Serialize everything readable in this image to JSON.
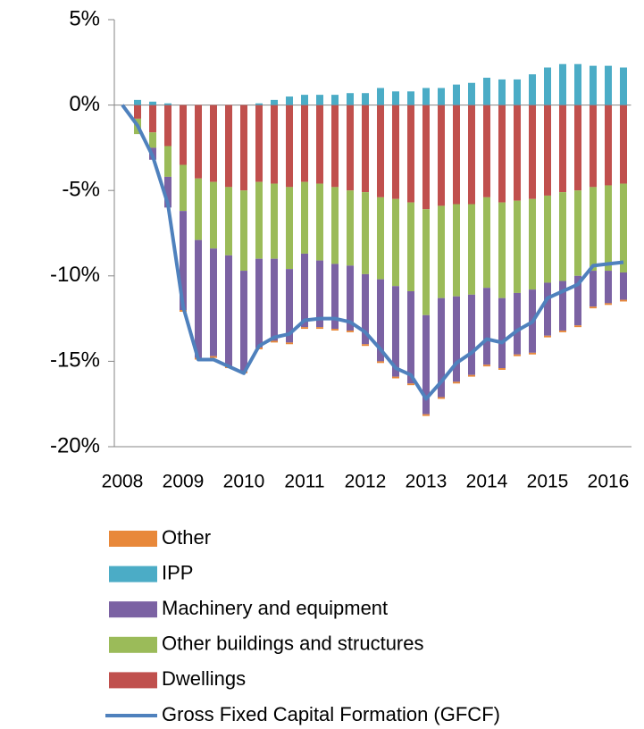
{
  "chart_data": {
    "type": "bar",
    "stacked": true,
    "categories": [
      "2008",
      null,
      null,
      null,
      "2009",
      null,
      null,
      null,
      "2010",
      null,
      null,
      null,
      "2011",
      null,
      null,
      null,
      "2012",
      null,
      null,
      null,
      "2013",
      null,
      null,
      null,
      "2014",
      null,
      null,
      null,
      "2015",
      null,
      null,
      null,
      "2016",
      null
    ],
    "ylim": [
      -20,
      5
    ],
    "yticks": [
      {
        "value": 5,
        "label": "5%"
      },
      {
        "value": 0,
        "label": "0%"
      },
      {
        "value": -5,
        "label": "-5%"
      },
      {
        "value": -10,
        "label": "-10%"
      },
      {
        "value": -15,
        "label": "-15%"
      },
      {
        "value": -20,
        "label": "-20%"
      }
    ],
    "series": [
      {
        "name": "Other",
        "type": "bar",
        "color": "#e8883a",
        "values": [
          0,
          0,
          0,
          0,
          -0.1,
          -0.1,
          -0.1,
          -0.1,
          -0.1,
          -0.1,
          -0.1,
          -0.1,
          -0.1,
          -0.1,
          -0.1,
          -0.1,
          -0.1,
          -0.1,
          -0.1,
          -0.1,
          -0.1,
          -0.1,
          -0.1,
          -0.1,
          -0.1,
          -0.1,
          -0.1,
          -0.1,
          -0.1,
          -0.1,
          -0.1,
          -0.1,
          -0.1,
          -0.1
        ]
      },
      {
        "name": "IPP",
        "type": "bar",
        "color": "#4bacc6",
        "values": [
          0,
          0.3,
          0.2,
          0.1,
          0,
          0,
          0,
          0,
          0,
          0.1,
          0.3,
          0.5,
          0.6,
          0.6,
          0.6,
          0.7,
          0.7,
          1.0,
          0.8,
          0.8,
          1.0,
          1.0,
          1.2,
          1.3,
          1.6,
          1.5,
          1.5,
          1.8,
          2.2,
          2.4,
          2.4,
          2.3,
          2.3,
          2.2
        ]
      },
      {
        "name": "Machinery and equipment",
        "type": "bar",
        "color": "#7b62a3",
        "values": [
          0,
          0,
          -0.7,
          -1.8,
          -5.8,
          -6.9,
          -6.3,
          -6.5,
          -5.9,
          -5.2,
          -4.8,
          -4.3,
          -4.3,
          -3.9,
          -3.8,
          -3.8,
          -4.1,
          -4.8,
          -5.3,
          -5.4,
          -5.8,
          -5.8,
          -5.0,
          -4.7,
          -4.5,
          -4.1,
          -3.6,
          -3.7,
          -3.1,
          -2.9,
          -2.9,
          -2.1,
          -1.9,
          -1.6
        ]
      },
      {
        "name": "Other buildings and structures",
        "type": "bar",
        "color": "#9bbb59",
        "values": [
          0,
          -0.9,
          -0.9,
          -1.8,
          -2.7,
          -3.6,
          -3.9,
          -4.0,
          -4.7,
          -4.5,
          -4.4,
          -4.8,
          -4.2,
          -4.5,
          -4.5,
          -4.4,
          -4.8,
          -4.8,
          -5.1,
          -5.2,
          -6.2,
          -5.4,
          -5.4,
          -5.3,
          -5.3,
          -5.6,
          -5.4,
          -5.3,
          -5.1,
          -5.2,
          -5.0,
          -4.9,
          -5.0,
          -5.2
        ]
      },
      {
        "name": "Dwellings",
        "type": "bar",
        "color": "#c0504d",
        "values": [
          0,
          -0.8,
          -1.6,
          -2.4,
          -3.5,
          -4.3,
          -4.5,
          -4.8,
          -5.0,
          -4.5,
          -4.6,
          -4.8,
          -4.5,
          -4.6,
          -4.8,
          -5.0,
          -5.1,
          -5.4,
          -5.5,
          -5.7,
          -6.1,
          -5.9,
          -5.8,
          -5.8,
          -5.4,
          -5.7,
          -5.6,
          -5.5,
          -5.3,
          -5.1,
          -5.0,
          -4.8,
          -4.7,
          -4.6
        ]
      },
      {
        "name": "Gross Fixed Capital Formation (GFCF)",
        "type": "line",
        "color": "#4f81bd",
        "values": [
          0,
          -1.2,
          -3.0,
          -5.8,
          -11.8,
          -14.9,
          -14.9,
          -15.3,
          -15.7,
          -14.1,
          -13.6,
          -13.4,
          -12.6,
          -12.5,
          -12.5,
          -12.7,
          -13.3,
          -14.3,
          -15.4,
          -15.8,
          -17.2,
          -16.2,
          -15.1,
          -14.5,
          -13.7,
          -13.9,
          -13.2,
          -12.7,
          -11.3,
          -10.9,
          -10.5,
          -9.4,
          -9.3,
          -9.2
        ]
      }
    ]
  }
}
